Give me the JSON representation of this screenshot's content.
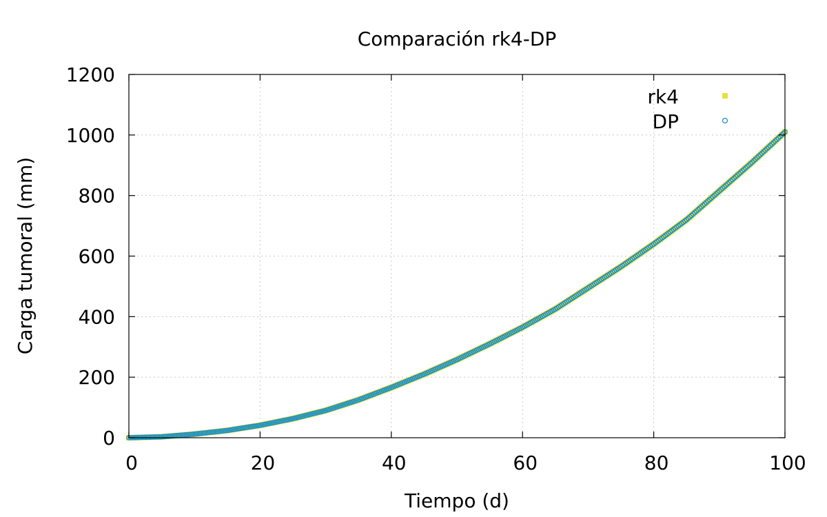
{
  "chart_data": {
    "type": "scatter",
    "title": "Comparación rk4-DP",
    "xlabel": "Tiempo (d)",
    "ylabel": "Carga tumoral (mm)",
    "xlim": [
      0,
      100
    ],
    "ylim": [
      0,
      1200
    ],
    "x_ticks": [
      "0",
      "20",
      "40",
      "60",
      "80",
      "100"
    ],
    "y_ticks": [
      "0",
      "200",
      "400",
      "600",
      "800",
      "1000",
      "1200"
    ],
    "grid": true,
    "legend_position": "top-right",
    "series": [
      {
        "name": "rk4",
        "marker": "filled-square",
        "color": "#e5e040",
        "x": [
          0,
          5,
          10,
          15,
          20,
          25,
          30,
          35,
          40,
          45,
          50,
          55,
          60,
          65,
          70,
          75,
          80,
          85,
          90,
          95,
          100
        ],
        "y": [
          0,
          3,
          12,
          24,
          41,
          63,
          90,
          125,
          166,
          210,
          258,
          310,
          365,
          425,
          495,
          565,
          640,
          720,
          815,
          910,
          1010
        ]
      },
      {
        "name": "DP",
        "marker": "open-circle",
        "color": "#1a8fc8",
        "x": [
          0,
          5,
          10,
          15,
          20,
          25,
          30,
          35,
          40,
          45,
          50,
          55,
          60,
          65,
          70,
          75,
          80,
          85,
          90,
          95,
          100
        ],
        "y": [
          0,
          3,
          12,
          24,
          41,
          63,
          90,
          125,
          166,
          210,
          258,
          310,
          365,
          425,
          495,
          565,
          640,
          720,
          815,
          910,
          1010
        ]
      }
    ]
  }
}
